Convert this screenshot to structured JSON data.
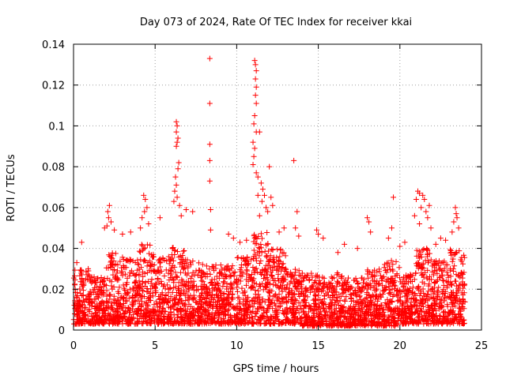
{
  "chart_data": {
    "type": "scatter",
    "title": "Day 073 of 2024, Rate Of TEC Index for receiver kkai",
    "xlabel": "GPS time / hours",
    "ylabel": "ROTI / TECUs",
    "xlim": [
      0,
      25
    ],
    "ylim": [
      0,
      0.14
    ],
    "xticks": [
      0,
      5,
      10,
      15,
      20,
      25
    ],
    "xtick_labels": [
      "0",
      "5",
      "10",
      "15",
      "20",
      "25"
    ],
    "yticks": [
      0,
      0.02,
      0.04,
      0.06,
      0.08,
      0.1,
      0.12,
      0.14
    ],
    "ytick_labels": [
      "0",
      "0.02",
      "0.04",
      "0.06",
      "0.08",
      "0.1",
      "0.12",
      "0.14"
    ],
    "grid": true,
    "marker": "+",
    "color": "#ff0000",
    "series": [
      {
        "name": "ROTI",
        "points": [
          [
            8.35,
            0.133
          ],
          [
            8.35,
            0.111
          ],
          [
            8.35,
            0.091
          ],
          [
            8.35,
            0.083
          ],
          [
            8.35,
            0.073
          ],
          [
            8.4,
            0.059
          ],
          [
            8.4,
            0.049
          ],
          [
            11.1,
            0.132
          ],
          [
            11.15,
            0.13
          ],
          [
            11.2,
            0.127
          ],
          [
            11.15,
            0.123
          ],
          [
            11.2,
            0.119
          ],
          [
            11.15,
            0.115
          ],
          [
            11.2,
            0.111
          ],
          [
            11.1,
            0.105
          ],
          [
            11.05,
            0.101
          ],
          [
            11.2,
            0.097
          ],
          [
            11.4,
            0.097
          ],
          [
            11.0,
            0.092
          ],
          [
            11.1,
            0.089
          ],
          [
            11.05,
            0.085
          ],
          [
            11.0,
            0.081
          ],
          [
            11.2,
            0.077
          ],
          [
            11.3,
            0.075
          ],
          [
            11.5,
            0.072
          ],
          [
            11.6,
            0.069
          ],
          [
            11.3,
            0.066
          ],
          [
            11.55,
            0.063
          ],
          [
            11.7,
            0.066
          ],
          [
            11.8,
            0.06
          ],
          [
            12.0,
            0.08
          ],
          [
            12.1,
            0.065
          ],
          [
            12.2,
            0.061
          ],
          [
            11.9,
            0.058
          ],
          [
            11.4,
            0.056
          ],
          [
            13.5,
            0.083
          ],
          [
            13.7,
            0.058
          ],
          [
            13.6,
            0.05
          ],
          [
            6.3,
            0.102
          ],
          [
            6.35,
            0.1
          ],
          [
            6.3,
            0.097
          ],
          [
            6.4,
            0.094
          ],
          [
            6.35,
            0.092
          ],
          [
            6.3,
            0.09
          ],
          [
            6.45,
            0.082
          ],
          [
            6.4,
            0.079
          ],
          [
            6.25,
            0.075
          ],
          [
            6.3,
            0.071
          ],
          [
            6.2,
            0.068
          ],
          [
            6.35,
            0.065
          ],
          [
            6.15,
            0.063
          ],
          [
            6.5,
            0.061
          ],
          [
            6.9,
            0.059
          ],
          [
            7.3,
            0.058
          ],
          [
            6.6,
            0.056
          ],
          [
            5.3,
            0.055
          ],
          [
            2.2,
            0.061
          ],
          [
            2.1,
            0.058
          ],
          [
            2.15,
            0.055
          ],
          [
            2.3,
            0.053
          ],
          [
            2.05,
            0.051
          ],
          [
            1.9,
            0.05
          ],
          [
            2.5,
            0.049
          ],
          [
            4.3,
            0.066
          ],
          [
            4.4,
            0.064
          ],
          [
            4.5,
            0.06
          ],
          [
            4.35,
            0.058
          ],
          [
            4.2,
            0.055
          ],
          [
            4.6,
            0.052
          ],
          [
            4.1,
            0.05
          ],
          [
            3.5,
            0.048
          ],
          [
            3.0,
            0.047
          ],
          [
            0.5,
            0.043
          ],
          [
            19.6,
            0.065
          ],
          [
            19.3,
            0.045
          ],
          [
            19.5,
            0.05
          ],
          [
            18.0,
            0.055
          ],
          [
            18.1,
            0.053
          ],
          [
            18.2,
            0.048
          ],
          [
            21.1,
            0.068
          ],
          [
            21.2,
            0.067
          ],
          [
            21.0,
            0.064
          ],
          [
            21.4,
            0.066
          ],
          [
            21.5,
            0.064
          ],
          [
            21.3,
            0.06
          ],
          [
            21.6,
            0.058
          ],
          [
            20.9,
            0.056
          ],
          [
            21.7,
            0.055
          ],
          [
            21.8,
            0.061
          ],
          [
            21.2,
            0.052
          ],
          [
            21.9,
            0.05
          ],
          [
            23.4,
            0.06
          ],
          [
            23.45,
            0.057
          ],
          [
            23.5,
            0.055
          ],
          [
            23.3,
            0.053
          ],
          [
            23.6,
            0.05
          ],
          [
            23.2,
            0.048
          ],
          [
            14.9,
            0.049
          ],
          [
            15.0,
            0.047
          ],
          [
            15.3,
            0.045
          ],
          [
            16.6,
            0.042
          ],
          [
            17.4,
            0.04
          ],
          [
            16.2,
            0.038
          ],
          [
            9.5,
            0.047
          ],
          [
            9.8,
            0.045
          ],
          [
            10.2,
            0.043
          ],
          [
            10.6,
            0.044
          ],
          [
            12.6,
            0.048
          ],
          [
            12.9,
            0.05
          ],
          [
            13.8,
            0.046
          ],
          [
            22.5,
            0.045
          ],
          [
            22.2,
            0.042
          ],
          [
            22.8,
            0.044
          ],
          [
            20.3,
            0.043
          ],
          [
            20.0,
            0.041
          ],
          [
            0.2,
            0.033
          ],
          [
            0.9,
            0.03
          ]
        ]
      }
    ],
    "dense_band": [
      {
        "hours": [
          0,
          1
        ],
        "low": 0.003,
        "high": 0.03
      },
      {
        "hours": [
          1,
          2
        ],
        "low": 0.003,
        "high": 0.026
      },
      {
        "hours": [
          2,
          3
        ],
        "low": 0.003,
        "high": 0.038
      },
      {
        "hours": [
          3,
          4
        ],
        "low": 0.003,
        "high": 0.036
      },
      {
        "hours": [
          4,
          5
        ],
        "low": 0.003,
        "high": 0.042
      },
      {
        "hours": [
          5,
          6
        ],
        "low": 0.003,
        "high": 0.036
      },
      {
        "hours": [
          6,
          7
        ],
        "low": 0.003,
        "high": 0.042
      },
      {
        "hours": [
          7,
          8
        ],
        "low": 0.003,
        "high": 0.034
      },
      {
        "hours": [
          8,
          9
        ],
        "low": 0.003,
        "high": 0.032
      },
      {
        "hours": [
          9,
          10
        ],
        "low": 0.003,
        "high": 0.032
      },
      {
        "hours": [
          10,
          11
        ],
        "low": 0.003,
        "high": 0.036
      },
      {
        "hours": [
          11,
          12
        ],
        "low": 0.003,
        "high": 0.048
      },
      {
        "hours": [
          12,
          13
        ],
        "low": 0.003,
        "high": 0.04
      },
      {
        "hours": [
          13,
          14
        ],
        "low": 0.003,
        "high": 0.03
      },
      {
        "hours": [
          14,
          15
        ],
        "low": 0.002,
        "high": 0.028
      },
      {
        "hours": [
          15,
          16
        ],
        "low": 0.002,
        "high": 0.026
      },
      {
        "hours": [
          16,
          17
        ],
        "low": 0.002,
        "high": 0.028
      },
      {
        "hours": [
          17,
          18
        ],
        "low": 0.002,
        "high": 0.026
      },
      {
        "hours": [
          18,
          19
        ],
        "low": 0.002,
        "high": 0.03
      },
      {
        "hours": [
          19,
          20
        ],
        "low": 0.002,
        "high": 0.034
      },
      {
        "hours": [
          20,
          21
        ],
        "low": 0.003,
        "high": 0.028
      },
      {
        "hours": [
          21,
          22
        ],
        "low": 0.003,
        "high": 0.04
      },
      {
        "hours": [
          22,
          23
        ],
        "low": 0.003,
        "high": 0.034
      },
      {
        "hours": [
          23,
          24
        ],
        "low": 0.003,
        "high": 0.04
      }
    ]
  }
}
